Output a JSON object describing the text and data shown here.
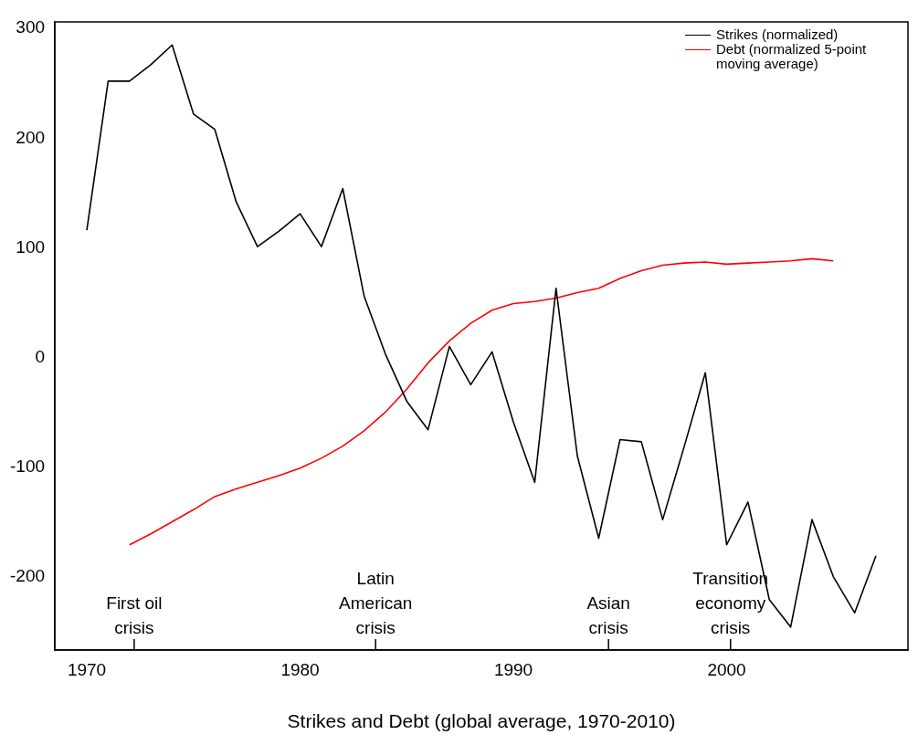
{
  "chart_data": {
    "type": "line",
    "xlabel": "Strikes and Debt (global average, 1970-2010)",
    "xlim": [
      1968.5,
      2008.5
    ],
    "xticks": [
      1970,
      1980,
      1990,
      2000
    ],
    "ylim": [
      -267,
      306
    ],
    "yticks": [
      -200,
      -100,
      0,
      100,
      200,
      300
    ],
    "grid": false,
    "legend": "top right",
    "marker": "none",
    "line_style": "solid",
    "series": [
      {
        "name": "Strikes (normalized)",
        "color": "#000000",
        "x": [
          1970,
          1971,
          1972,
          1973,
          1974,
          1975,
          1976,
          1977,
          1978,
          1979,
          1980,
          1981,
          1982,
          1983,
          1984,
          1985,
          1986,
          1987,
          1988,
          1989,
          1990,
          1991,
          1992,
          1993,
          1994,
          1995,
          1996,
          1997,
          1998,
          1999,
          2000,
          2001,
          2002,
          2003,
          2004,
          2005,
          2006,
          2007
        ],
        "values": [
          116,
          252,
          252,
          267,
          285,
          222,
          208,
          142,
          101,
          115,
          131,
          101,
          154,
          56,
          3,
          -40,
          -66,
          10,
          -25,
          5,
          -59,
          -114,
          63,
          -90,
          -165,
          -75,
          -77,
          -148,
          -82,
          -14,
          -171,
          -132,
          -221,
          -246,
          -148,
          -200,
          -233,
          -181
        ]
      },
      {
        "name": "Debt (normalized 5-point moving average)",
        "color": "#ff0000",
        "x": [
          1972,
          1973,
          1974,
          1975,
          1976,
          1977,
          1978,
          1979,
          1980,
          1981,
          1982,
          1983,
          1984,
          1985,
          1986,
          1987,
          1988,
          1989,
          1990,
          1991,
          1992,
          1993,
          1994,
          1995,
          1996,
          1997,
          1998,
          1999,
          2000,
          2001,
          2002,
          2003,
          2004,
          2005
        ],
        "values": [
          -171,
          -161,
          -150,
          -139,
          -127,
          -120,
          -114,
          -108,
          -101,
          -92,
          -81,
          -67,
          -50,
          -29,
          -5,
          15,
          31,
          43,
          49,
          51,
          54,
          59,
          63,
          72,
          79,
          84,
          86,
          87,
          85,
          86,
          87,
          88,
          90,
          88
        ]
      }
    ],
    "annotations": [
      "First oil\ncrisis",
      "Latin\nAmerican\ncrisis",
      "Asian\ncrisis",
      "Transition\neconomy\ncrisis"
    ]
  }
}
